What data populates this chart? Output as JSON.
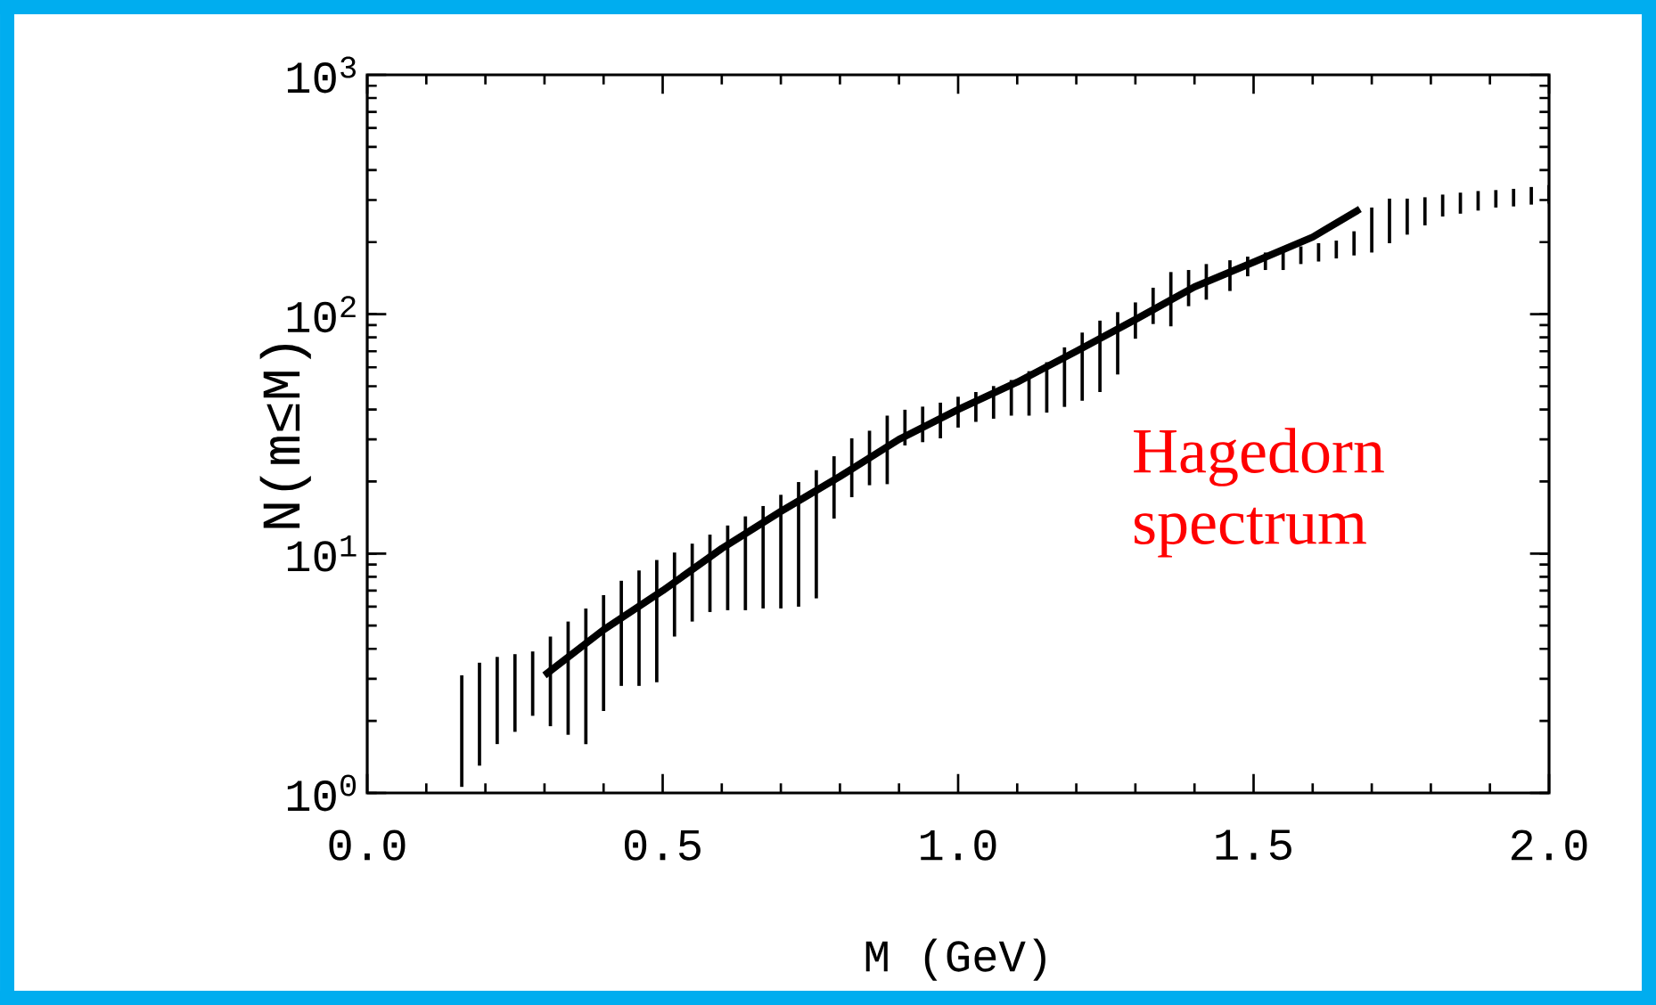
{
  "chart_data": {
    "type": "bar",
    "xlabel": "M (GeV)",
    "ylabel": "N(m≤M)",
    "log": "y",
    "xlim": [
      0,
      2
    ],
    "ylim": [
      1,
      1000
    ],
    "xticks": [
      {
        "value": 0,
        "label": "0.0"
      },
      {
        "value": 0.5,
        "label": "0.5"
      },
      {
        "value": 1,
        "label": "1.0"
      },
      {
        "value": 1.5,
        "label": "1.5"
      },
      {
        "value": 2,
        "label": "2.0"
      }
    ],
    "yticks": [
      {
        "value": 1,
        "label": "10$^{0}$"
      },
      {
        "value": 10,
        "label": "10$^{1}$"
      },
      {
        "value": 100,
        "label": "10$^{2}$"
      },
      {
        "value": 1000,
        "label": "10$^{3}$"
      }
    ],
    "annotations": [
      "Hagedorn spectrum"
    ],
    "series": [
      {
        "color": "#000000",
        "x": [
          0.16,
          0.19,
          0.22,
          0.25,
          0.28,
          0.31,
          0.34,
          0.37,
          0.4,
          0.43,
          0.46,
          0.49,
          0.52,
          0.55,
          0.58,
          0.61,
          0.64,
          0.67,
          0.7,
          0.73,
          0.76,
          0.79,
          0.82,
          0.85,
          0.88,
          0.91,
          0.94,
          0.97,
          1.0,
          1.03,
          1.06,
          1.09,
          1.12,
          1.15,
          1.18,
          1.21,
          1.24,
          1.27,
          1.3,
          1.33,
          1.36,
          1.39,
          1.42,
          1.46,
          1.49,
          1.52,
          1.55,
          1.58,
          1.61,
          1.64,
          1.67,
          1.7,
          1.73,
          1.76,
          1.79,
          1.82,
          1.85,
          1.88,
          1.91,
          1.94,
          1.97,
          2.0
        ],
        "base": [
          1.06,
          1.3,
          1.6,
          1.8,
          2.1,
          1.9,
          1.75,
          1.6,
          2.2,
          2.8,
          2.8,
          2.9,
          4.5,
          5.2,
          5.7,
          5.8,
          5.8,
          5.9,
          5.9,
          6.0,
          6.5,
          14,
          17.2,
          19.3,
          19.5,
          28.3,
          29.2,
          30.3,
          33.6,
          35.5,
          36.6,
          37.7,
          37.7,
          38.8,
          41,
          43.5,
          47.3,
          56,
          79,
          91,
          89,
          108,
          115,
          125,
          144,
          153,
          153,
          162,
          166,
          171,
          176,
          181,
          198,
          215,
          235,
          256,
          263,
          271,
          279,
          282,
          287,
          290
        ],
        "values": [
          2.04,
          2.2,
          2.1,
          2.0,
          1.8,
          2.6,
          3.45,
          4.3,
          4.5,
          4.9,
          5.7,
          6.5,
          5.6,
          5.8,
          6.3,
          7.3,
          8.5,
          9.9,
          11.7,
          13.9,
          15.8,
          11.5,
          13.1,
          13.3,
          18.2,
          11.6,
          11.9,
          12.4,
          11.6,
          11.8,
          13.5,
          15.4,
          20.1,
          24.2,
          31.7,
          40.3,
          46.7,
          46,
          33,
          38,
          61,
          45,
          47,
          43,
          30,
          28,
          34,
          30,
          32,
          32,
          46,
          98,
          106,
          89,
          73,
          60,
          59,
          56,
          51,
          52,
          53,
          56
        ]
      },
      {
        "type": "line",
        "color": "#000000",
        "line_style": "solid",
        "marker": "none",
        "x": [
          0.3,
          0.4,
          0.5,
          0.6,
          0.7,
          0.8,
          0.9,
          1.0,
          1.1,
          1.2,
          1.3,
          1.4,
          1.5,
          1.6,
          1.68
        ],
        "values": [
          3.1,
          4.8,
          7.0,
          10.5,
          15,
          21,
          30,
          40,
          52,
          70,
          95,
          130,
          165,
          210,
          275
        ]
      }
    ]
  }
}
